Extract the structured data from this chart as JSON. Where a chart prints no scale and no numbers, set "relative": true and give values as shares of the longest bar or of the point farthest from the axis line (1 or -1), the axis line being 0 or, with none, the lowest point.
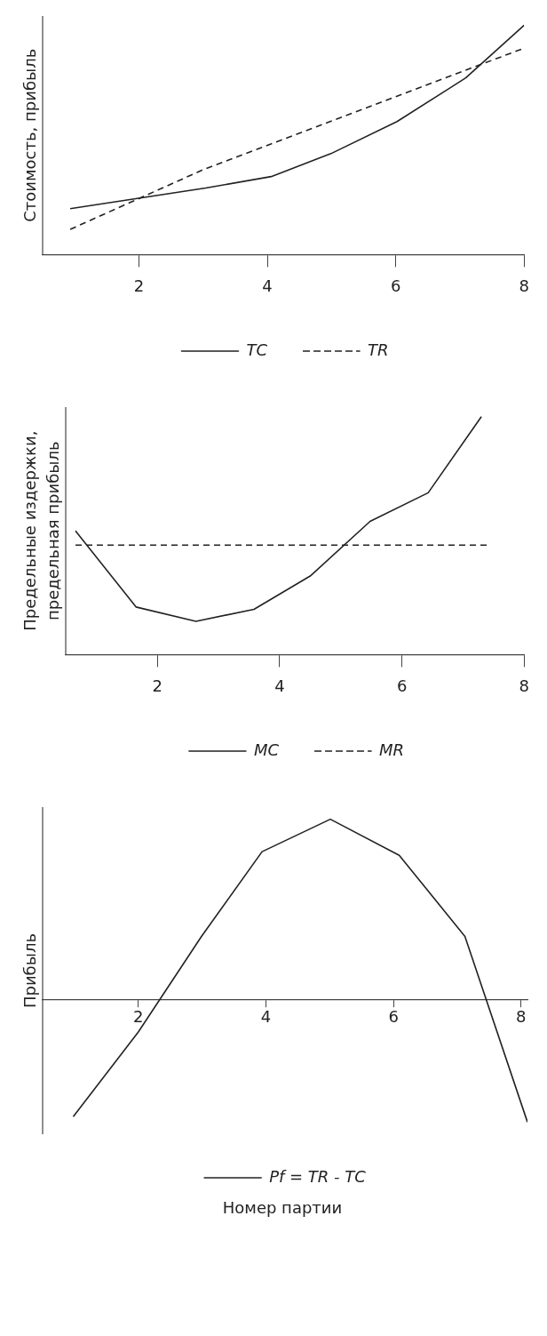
{
  "chart_data": [
    {
      "type": "line",
      "ylabel": "Стоимость, прибыль",
      "relative": true,
      "xlim": [
        0.5,
        8
      ],
      "xticks": [
        2,
        4,
        6,
        8
      ],
      "legend": "bottom",
      "marker": "none",
      "series": [
        {
          "name": "TC",
          "color": "#222222",
          "line_style": "solid",
          "x": [
            0.93,
            3.04,
            4.06,
            4.99,
            6.02,
            7.09,
            8.0
          ],
          "values": [
            0.2,
            0.29,
            0.34,
            0.44,
            0.58,
            0.77,
            1.0
          ]
        },
        {
          "name": "TR",
          "color": "#222222",
          "line_style": "dashed",
          "x": [
            0.93,
            3.0,
            8.0
          ],
          "values": [
            0.11,
            0.37,
            0.9
          ]
        }
      ]
    },
    {
      "type": "line",
      "ylabel": "Предельные издержки, предельная прибыль",
      "relative": true,
      "xlim": [
        0.5,
        8
      ],
      "xticks": [
        2,
        4,
        6,
        8
      ],
      "legend": "bottom",
      "marker": "none",
      "series": [
        {
          "name": "MC",
          "color": "#222222",
          "line_style": "solid",
          "x": [
            0.66,
            1.65,
            2.63,
            3.58,
            4.5,
            5.48,
            6.43,
            7.3
          ],
          "values": [
            0.52,
            0.2,
            0.14,
            0.19,
            0.33,
            0.56,
            0.68,
            1.0
          ]
        },
        {
          "name": "MR",
          "color": "#222222",
          "line_style": "dashed",
          "x": [
            0.66,
            7.4
          ],
          "values": [
            0.46,
            0.46
          ]
        }
      ]
    },
    {
      "type": "line",
      "ylabel": "Прибыль",
      "xlabel": "Номер партии",
      "relative": true,
      "xlim": [
        0.5,
        8.1
      ],
      "xticks": [
        2,
        4,
        6,
        8
      ],
      "legend": "bottom",
      "marker": "none",
      "series": [
        {
          "name": "Pf = TR - TC",
          "color": "#222222",
          "line_style": "solid",
          "x": [
            0.98,
            2.0,
            2.99,
            3.94,
            5.01,
            6.09,
            7.12,
            8.1
          ],
          "values": [
            -0.65,
            -0.18,
            0.35,
            0.82,
            1.0,
            0.8,
            0.35,
            -0.68
          ]
        }
      ]
    }
  ]
}
